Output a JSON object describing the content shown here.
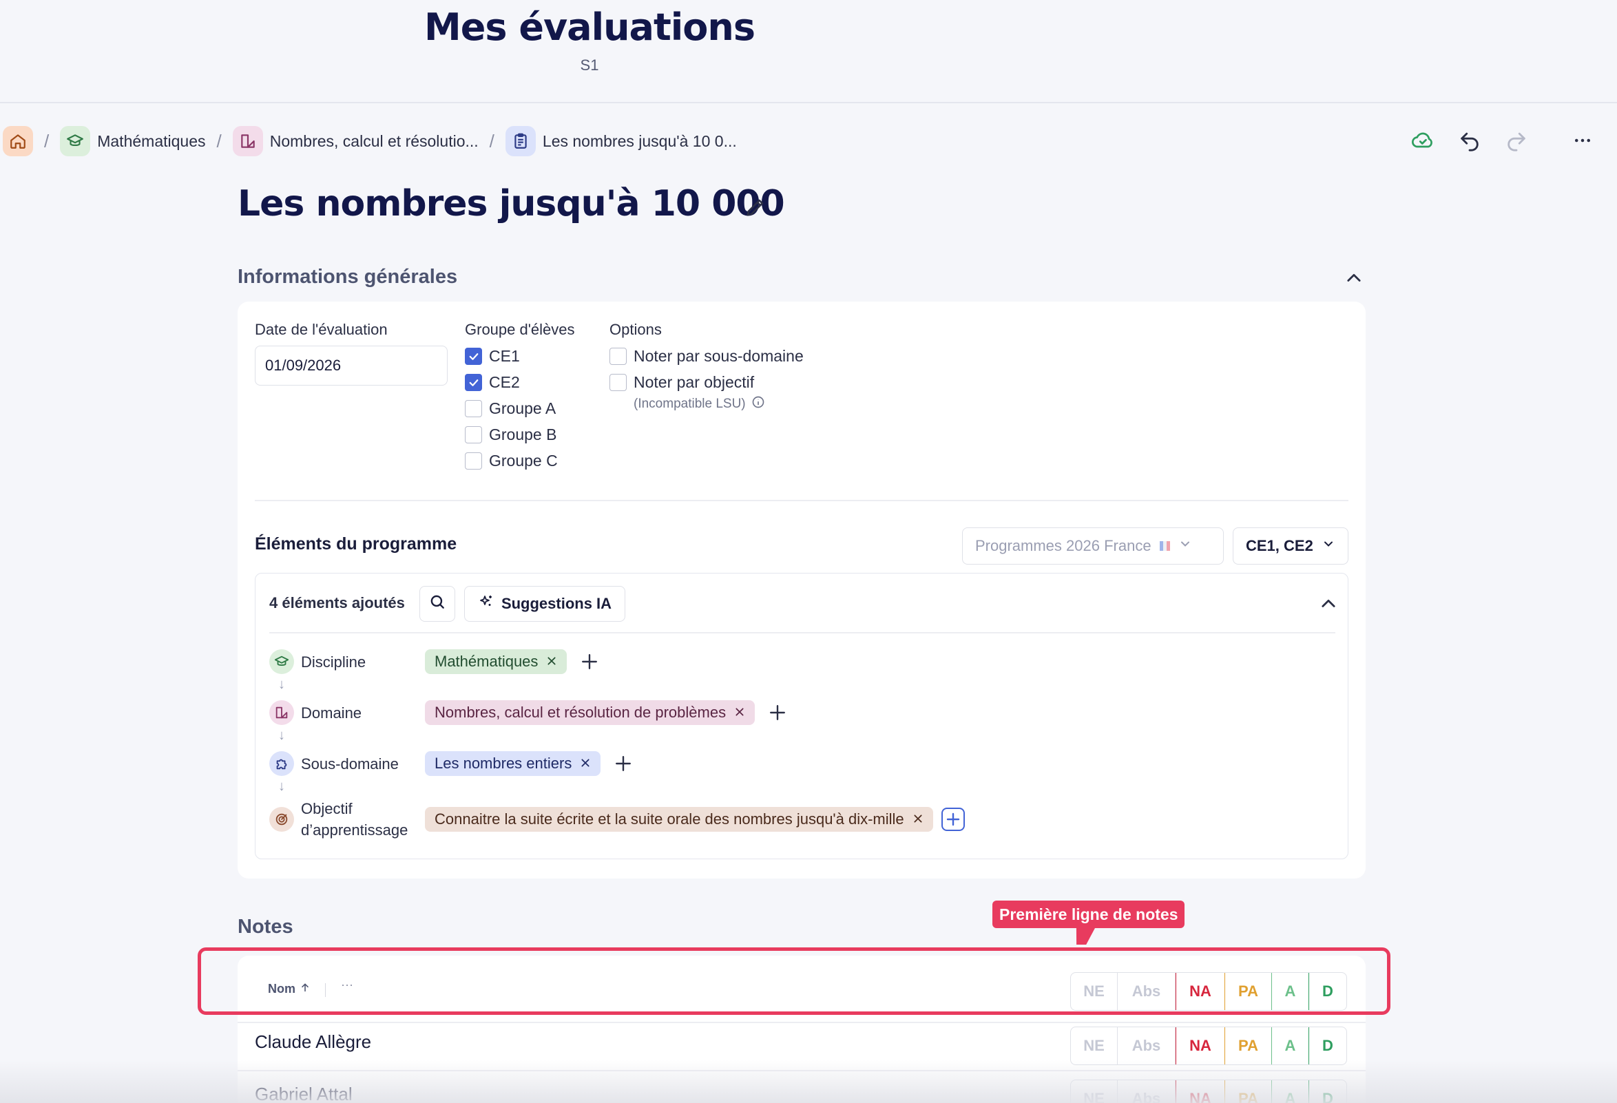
{
  "header": {
    "title": "Mes évaluations",
    "subtitle": "S1"
  },
  "breadcrumb": [
    {
      "label": "",
      "icon": "home-icon"
    },
    {
      "label": "Mathématiques",
      "icon": "graduation-cap-icon"
    },
    {
      "label": "Nombres, calcul et résolutio...",
      "icon": "domain-shapes-icon"
    },
    {
      "label": "Les nombres jusqu'à 10 0...",
      "icon": "clipboard-icon"
    }
  ],
  "top_actions": [
    "cloud-check-icon",
    "undo-icon",
    "redo-icon",
    "more-icon"
  ],
  "page_title": "Les nombres jusqu'à 10 000",
  "info": {
    "section_title": "Informations générales",
    "date_label": "Date de l'évaluation",
    "date_value": "01/09/2026",
    "group_label": "Groupe d'élèves",
    "groups": [
      {
        "label": "CE1",
        "checked": true
      },
      {
        "label": "CE2",
        "checked": true
      },
      {
        "label": "Groupe A",
        "checked": false
      },
      {
        "label": "Groupe B",
        "checked": false
      },
      {
        "label": "Groupe C",
        "checked": false
      }
    ],
    "options_label": "Options",
    "options": [
      {
        "label": "Noter par sous-domaine",
        "checked": false
      },
      {
        "label": "Noter par objectif",
        "checked": false
      }
    ],
    "options_note": "(Incompatible LSU)"
  },
  "programme": {
    "title": "Éléments du programme",
    "source_select": "Programmes 2026 France",
    "level_select": "CE1, CE2",
    "count_label": "4 éléments ajoutés",
    "ai_button": "Suggestions IA",
    "rows": [
      {
        "label": "Discipline",
        "tag": "Mathématiques",
        "icon": "graduation-cap-icon",
        "color": "#d9ecd9",
        "icon_bg": "#dcefdc"
      },
      {
        "label": "Domaine",
        "tag": "Nombres, calcul et résolution de problèmes",
        "icon": "domain-shapes-icon",
        "color": "#f0dbe7",
        "icon_bg": "#f3dcea"
      },
      {
        "label": "Sous-domaine",
        "tag": "Les nombres entiers",
        "icon": "puzzle-icon",
        "color": "#dbe2fb",
        "icon_bg": "#dbe2fb"
      },
      {
        "label": "Objectif d’apprentissage",
        "tag": "Connaitre la suite écrite et la suite orale des nombres jusqu'à dix-mille",
        "icon": "target-icon",
        "color": "#efe0d8",
        "icon_bg": "#f1e0d8"
      }
    ]
  },
  "notes": {
    "section_title": "Notes",
    "sort_label": "Nom",
    "more_label": "···",
    "grades": [
      {
        "label": "NE",
        "color": "#c5c8d4"
      },
      {
        "label": "Abs",
        "color": "#c5c8d4"
      },
      {
        "label": "NA",
        "color": "#d7263d"
      },
      {
        "label": "PA",
        "color": "#e0a030"
      },
      {
        "label": "A",
        "color": "#6cc08a"
      },
      {
        "label": "D",
        "color": "#2e9e5f"
      }
    ],
    "students": [
      "Claude Allègre",
      "Gabriel Attal"
    ]
  },
  "annotation": {
    "label": "Première ligne de notes"
  }
}
